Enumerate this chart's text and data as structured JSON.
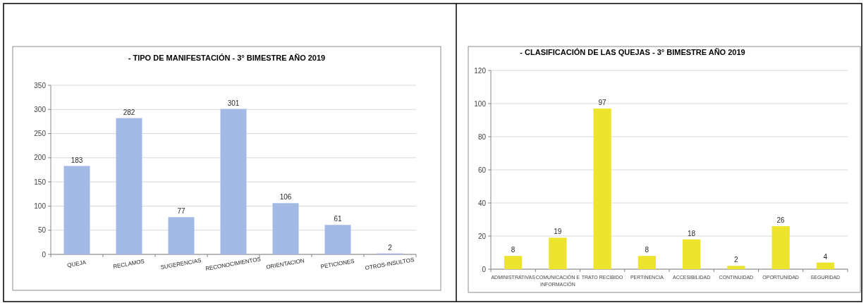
{
  "chart_data": [
    {
      "type": "bar",
      "title": "- TIPO DE MANIFESTACIÓN -  3° BIMESTRE AÑO 2019",
      "categories": [
        "QUEJA",
        "RECLAMOS",
        "SUGERENCIAS",
        "RECONOCIMIENTOS",
        "ORIENTACION",
        "PETICIONES",
        "OTROS-INSULTOS"
      ],
      "values": [
        183,
        282,
        77,
        301,
        106,
        61,
        2
      ],
      "color": "#a3b9e6",
      "ylim": [
        0,
        350
      ],
      "yticks": [
        0,
        50,
        100,
        150,
        200,
        250,
        300,
        350
      ],
      "grid": "y",
      "data_labels": true
    },
    {
      "type": "bar",
      "title": "- CLASIFICACIÓN DE LAS QUEJAS - 3° BIMESTRE AÑO 2019",
      "categories": [
        "ADMINISTRATIVAS",
        "COMUNICACIÓN E INFORMACIÓN",
        "TRATO RECIBIDO",
        "PERTINENCIA",
        "ACCESIBILIDAD",
        "CONTINUIDAD",
        "OPORTUNIDAD",
        "SEGURIDAD"
      ],
      "values": [
        8,
        19,
        97,
        8,
        18,
        2,
        26,
        4
      ],
      "color": "#ede42e",
      "ylim": [
        0,
        120
      ],
      "yticks": [
        0,
        20,
        40,
        60,
        80,
        100,
        120
      ],
      "grid": "y",
      "data_labels": true
    }
  ]
}
